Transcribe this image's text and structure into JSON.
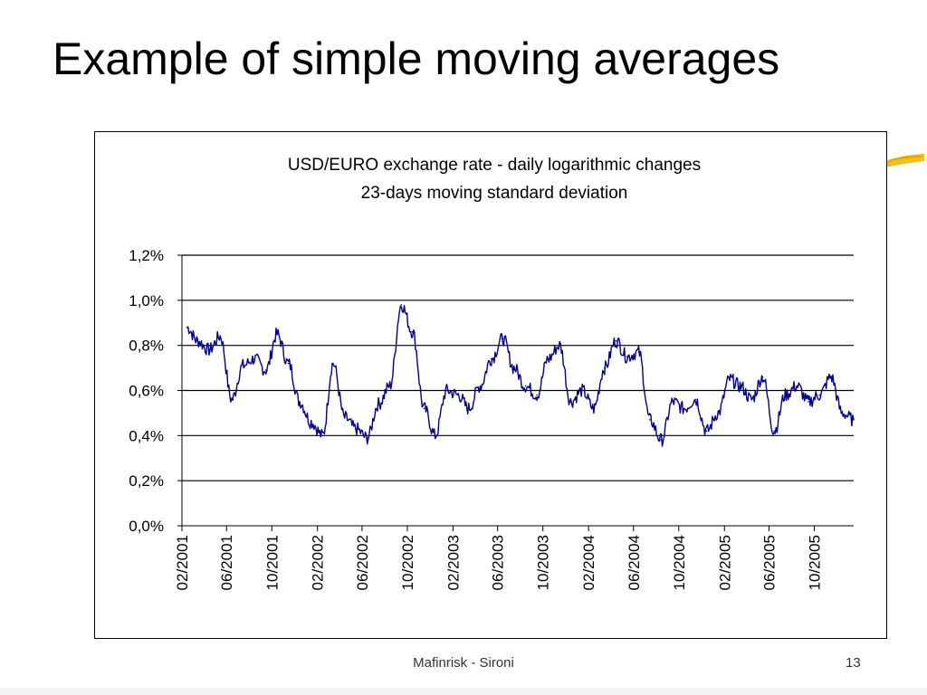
{
  "slide": {
    "title": "Example of simple moving averages",
    "footer": "Mafinrisk - Sironi",
    "page_number": "13"
  },
  "colors": {
    "series": "#00008b",
    "grid": "#000000",
    "accent_mark": "#f0c020"
  },
  "chart_data": {
    "type": "line",
    "title": "USD/EURO exchange rate - daily logarithmic changes",
    "subtitle": "23-days moving standard deviation",
    "xlabel": "",
    "ylabel": "",
    "ylim": [
      0,
      1.2
    ],
    "xlim": [
      "2001-02-01",
      "2006-01-15"
    ],
    "grid": "horizontal",
    "y_ticks": [
      {
        "value": 0.0,
        "label": "0,0%"
      },
      {
        "value": 0.2,
        "label": "0,2%"
      },
      {
        "value": 0.4,
        "label": "0,4%"
      },
      {
        "value": 0.6,
        "label": "0,6%"
      },
      {
        "value": 0.8,
        "label": "0,8%"
      },
      {
        "value": 1.0,
        "label": "1,0%"
      },
      {
        "value": 1.2,
        "label": "1,2%"
      }
    ],
    "x_ticks": [
      "02/2001",
      "06/2001",
      "10/2001",
      "02/2002",
      "06/2002",
      "10/2002",
      "02/2003",
      "06/2003",
      "10/2003",
      "02/2004",
      "06/2004",
      "10/2004",
      "02/2005",
      "06/2005",
      "10/2005"
    ],
    "series": [
      {
        "x": [
          "2001-02",
          "2001-03",
          "2001-04",
          "2001-05",
          "2001-06",
          "2001-07",
          "2001-08",
          "2001-09",
          "2001-10",
          "2001-11",
          "2001-12",
          "2002-01",
          "2002-02",
          "2002-03",
          "2002-04",
          "2002-05",
          "2002-06",
          "2002-07",
          "2002-08",
          "2002-09",
          "2002-10",
          "2002-11",
          "2002-12",
          "2003-01",
          "2003-02",
          "2003-03",
          "2003-04",
          "2003-05",
          "2003-06",
          "2003-07",
          "2003-08",
          "2003-09",
          "2003-10",
          "2003-11",
          "2003-12",
          "2004-01",
          "2004-02",
          "2004-03",
          "2004-04",
          "2004-05",
          "2004-06",
          "2004-07",
          "2004-08",
          "2004-09",
          "2004-10",
          "2004-11",
          "2004-12",
          "2005-01",
          "2005-02",
          "2005-03",
          "2005-04",
          "2005-05",
          "2005-06",
          "2005-07",
          "2005-08",
          "2005-09",
          "2005-10",
          "2005-11",
          "2005-12",
          "2006-01"
        ],
        "values": [
          0.88,
          0.82,
          0.78,
          0.84,
          0.56,
          0.71,
          0.74,
          0.69,
          0.85,
          0.72,
          0.55,
          0.46,
          0.4,
          0.72,
          0.48,
          0.43,
          0.39,
          0.54,
          0.62,
          0.98,
          0.86,
          0.52,
          0.4,
          0.6,
          0.58,
          0.52,
          0.62,
          0.74,
          0.83,
          0.7,
          0.62,
          0.58,
          0.74,
          0.8,
          0.55,
          0.6,
          0.52,
          0.7,
          0.82,
          0.75,
          0.77,
          0.47,
          0.38,
          0.55,
          0.52,
          0.56,
          0.42,
          0.5,
          0.65,
          0.62,
          0.56,
          0.66,
          0.42,
          0.58,
          0.62,
          0.55,
          0.58,
          0.66,
          0.5,
          0.47
        ]
      }
    ]
  }
}
